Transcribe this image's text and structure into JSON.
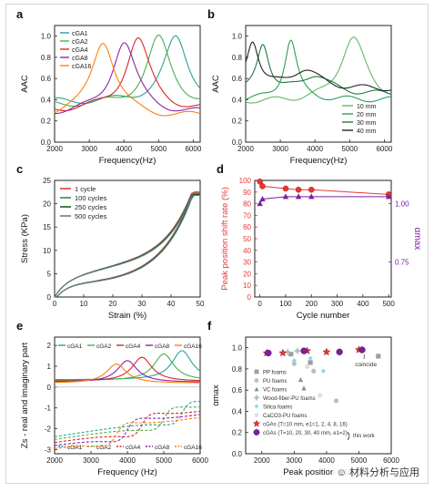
{
  "watermark": "材料分析与应用",
  "colors": {
    "cGA1": "#2aa198",
    "cGA2": "#4caf50",
    "cGA4": "#d62728",
    "cGA8": "#8e24aa",
    "cGA16": "#ff7f0e",
    "mm10": "#5dbb63",
    "mm20": "#2e9e58",
    "mm30": "#1f7a3c",
    "mm40": "#222222",
    "cycle1": "#e53935",
    "cycle100": "#2e8b57",
    "cycle250": "#1b5e20",
    "cycle500": "#607d8b",
    "shift": "#e53935",
    "alpha": "#7b1fa2"
  },
  "chart_data": [
    {
      "panel": "a",
      "type": "line",
      "xlabel": "Frequency(Hz)",
      "ylabel": "AAC",
      "xlim": [
        2000,
        6200
      ],
      "ylim": [
        0.0,
        1.1
      ],
      "xticks": [
        2000,
        3000,
        4000,
        5000,
        6000
      ],
      "yticks": [
        0.0,
        0.2,
        0.4,
        0.6,
        0.8,
        1.0
      ],
      "legend": "top-left",
      "series": [
        {
          "name": "cGA1",
          "peak_x": 5500,
          "peak_y": 0.98,
          "base": 0.38
        },
        {
          "name": "cGA2",
          "peak_x": 5000,
          "peak_y": 0.98,
          "base": 0.35
        },
        {
          "name": "cGA4",
          "peak_x": 4400,
          "peak_y": 0.98,
          "base": 0.3
        },
        {
          "name": "cGA8",
          "peak_x": 4000,
          "peak_y": 0.95,
          "base": 0.27
        },
        {
          "name": "cGA16",
          "peak_x": 3400,
          "peak_y": 0.96,
          "base": 0.24
        }
      ]
    },
    {
      "panel": "b",
      "type": "line",
      "xlabel": "Frequency(Hz)",
      "ylabel": "AAC",
      "xlim": [
        2000,
        6200
      ],
      "ylim": [
        0.0,
        1.1
      ],
      "xticks": [
        2000,
        3000,
        4000,
        5000,
        6000
      ],
      "yticks": [
        0.0,
        0.2,
        0.4,
        0.6,
        0.8,
        1.0
      ],
      "legend": "bottom-right",
      "series": [
        {
          "name": "10 mm",
          "peak_x": 5100,
          "peak_y": 0.98,
          "base": 0.38
        },
        {
          "name": "20 mm",
          "peak_x": 3300,
          "peak_y": 0.97,
          "base": 0.4
        },
        {
          "name": "30 mm",
          "peak_x": 2500,
          "peak_y": 0.92,
          "base": 0.45
        },
        {
          "name": "40 mm",
          "peak_x": 2200,
          "peak_y": 0.95,
          "base": 0.5
        }
      ]
    },
    {
      "panel": "c",
      "type": "line",
      "xlabel": "Strain (%)",
      "ylabel": "Stress (KPa)",
      "xlim": [
        0,
        50
      ],
      "ylim": [
        0,
        25
      ],
      "xticks": [
        0,
        10,
        20,
        30,
        40,
        50
      ],
      "yticks": [
        0,
        5,
        10,
        15,
        20,
        25
      ],
      "legend": "top-left",
      "series": [
        {
          "name": "1 cycle",
          "max_y": 22.5
        },
        {
          "name": "100 cycles",
          "max_y": 22.2
        },
        {
          "name": "250 cycles",
          "max_y": 22.0
        },
        {
          "name": "500 cycles",
          "max_y": 21.8
        }
      ]
    },
    {
      "panel": "d",
      "type": "line",
      "xlabel": "Cycle number",
      "ylabel": "Peak position shift rate (%)",
      "y2label": "αmax",
      "xlim": [
        -20,
        510
      ],
      "ylim": [
        0,
        100
      ],
      "y2lim": [
        0.6,
        1.1
      ],
      "xticks": [
        0,
        100,
        200,
        300,
        400,
        500
      ],
      "yticks": [
        0,
        10,
        20,
        30,
        40,
        50,
        60,
        70,
        80,
        90,
        100
      ],
      "y2ticks": [
        0.75,
        1.0
      ],
      "series": [
        {
          "name": "Peak position shift rate",
          "axis": "left",
          "x": [
            0,
            10,
            100,
            150,
            200,
            500
          ],
          "y": [
            99,
            95,
            93,
            92,
            92,
            88
          ]
        },
        {
          "name": "αmax",
          "axis": "right",
          "x": [
            0,
            10,
            100,
            150,
            200,
            500
          ],
          "y": [
            1.0,
            1.02,
            1.03,
            1.03,
            1.03,
            1.03
          ]
        }
      ]
    },
    {
      "panel": "e",
      "type": "line",
      "xlabel": "Frequency (Hz)",
      "ylabel": "Zs - real and imaginary part",
      "xlim": [
        2000,
        6000
      ],
      "ylim": [
        -3.2,
        2.4
      ],
      "xticks": [
        2000,
        3000,
        4000,
        5000,
        6000
      ],
      "yticks": [
        -3,
        -2,
        -1,
        0,
        1,
        2
      ],
      "legend": "top and bottom rows",
      "series": [
        {
          "name": "cGA1",
          "res_x": 5500
        },
        {
          "name": "cGA2",
          "res_x": 5000
        },
        {
          "name": "cGA4",
          "res_x": 4400
        },
        {
          "name": "cGA8",
          "res_x": 4000
        },
        {
          "name": "cGA16",
          "res_x": 3700
        }
      ]
    },
    {
      "panel": "f",
      "type": "scatter",
      "xlabel": "Peak position (Hz)",
      "ylabel": "αmax",
      "xlim": [
        1500,
        6000
      ],
      "ylim": [
        0.0,
        1.1
      ],
      "xticks": [
        2000,
        3000,
        4000,
        5000,
        6000
      ],
      "yticks": [
        0.0,
        0.2,
        0.4,
        0.6,
        0.8,
        1.0
      ],
      "annotation": "coincide",
      "this_work_label": "this work",
      "legend": [
        {
          "name": "PP foams",
          "marker": "square",
          "color": "#9e9e9e"
        },
        {
          "name": "PU foams",
          "marker": "circle",
          "color": "#bdbdbd"
        },
        {
          "name": "VC foams",
          "marker": "triangle",
          "color": "#78909c"
        },
        {
          "name": "Wood-fiber-PU foams",
          "marker": "star4",
          "color": "#b0bec5"
        },
        {
          "name": "Silica foams",
          "marker": "diamond",
          "color": "#80deea"
        },
        {
          "name": "CaCO3-PU foams",
          "marker": "circle",
          "color": "#e0e0e0"
        },
        {
          "name": "cGAs (T=10 mm, e1=1, 2, 4, 8, 16)",
          "marker": "star",
          "color": "#e53935"
        },
        {
          "name": "cGAs (T=10, 20, 30, 40 mm, e1=2)",
          "marker": "ball",
          "color": "#7b1fa2"
        }
      ],
      "points": [
        {
          "set": "PP foams",
          "x": 2900,
          "y": 0.94
        },
        {
          "set": "PP foams",
          "x": 3500,
          "y": 0.86
        },
        {
          "set": "PP foams",
          "x": 5600,
          "y": 0.92
        },
        {
          "set": "PU foams",
          "x": 3000,
          "y": 0.85
        },
        {
          "set": "PU foams",
          "x": 3600,
          "y": 0.78
        },
        {
          "set": "PU foams",
          "x": 4300,
          "y": 0.5
        },
        {
          "set": "VC foams",
          "x": 3300,
          "y": 0.62
        },
        {
          "set": "VC foams",
          "x": 3200,
          "y": 0.7
        },
        {
          "set": "Wood-fiber-PU foams",
          "x": 3100,
          "y": 0.97
        },
        {
          "set": "Wood-fiber-PU foams",
          "x": 2800,
          "y": 0.96
        },
        {
          "set": "Silica foams",
          "x": 3500,
          "y": 0.9
        },
        {
          "set": "Silica foams",
          "x": 3900,
          "y": 0.78
        },
        {
          "set": "Silica foams",
          "x": 3000,
          "y": 0.88
        },
        {
          "set": "CaCO3-PU foams",
          "x": 3800,
          "y": 0.55
        },
        {
          "set": "CaCO3-PU foams",
          "x": 3400,
          "y": 0.82
        },
        {
          "set": "cGAs (T=10 mm, e1=1, 2, 4, 8, 16)",
          "x": 2150,
          "y": 0.95
        },
        {
          "set": "cGAs (T=10 mm, e1=1, 2, 4, 8, 16)",
          "x": 2650,
          "y": 0.95
        },
        {
          "set": "cGAs (T=10 mm, e1=1, 2, 4, 8, 16)",
          "x": 3400,
          "y": 0.97
        },
        {
          "set": "cGAs (T=10 mm, e1=1, 2, 4, 8, 16)",
          "x": 4000,
          "y": 0.96
        },
        {
          "set": "cGAs (T=10 mm, e1=1, 2, 4, 8, 16)",
          "x": 5000,
          "y": 0.98
        },
        {
          "set": "cGAs (T=10, 20, 30, 40 mm, e1=2)",
          "x": 2200,
          "y": 0.95
        },
        {
          "set": "cGAs (T=10, 20, 30, 40 mm, e1=2)",
          "x": 3300,
          "y": 0.97
        },
        {
          "set": "cGAs (T=10, 20, 30, 40 mm, e1=2)",
          "x": 4400,
          "y": 0.96
        },
        {
          "set": "cGAs (T=10, 20, 30, 40 mm, e1=2)",
          "x": 5100,
          "y": 0.98
        }
      ]
    }
  ]
}
